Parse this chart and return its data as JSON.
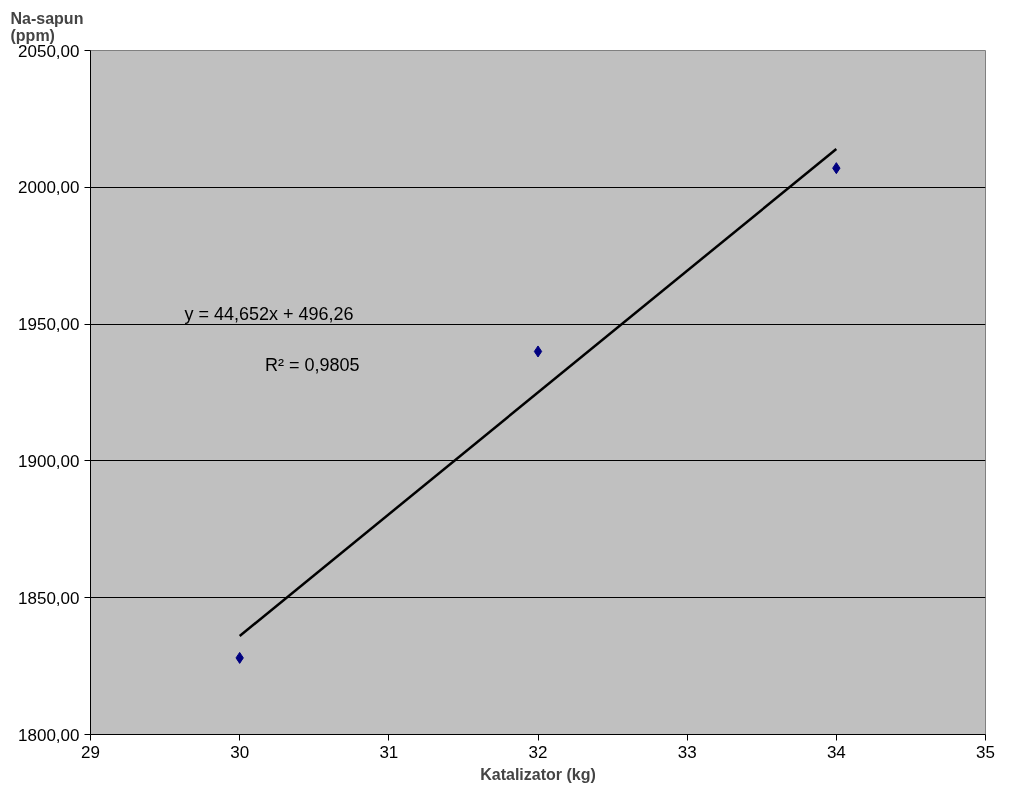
{
  "chart_data": {
    "type": "scatter",
    "xlabel": "Katalizator (kg)",
    "ylabel": "Na-sapun\n(ppm)",
    "series": [
      {
        "color": "#000080",
        "x": [
          30,
          32,
          34
        ],
        "values": [
          1828,
          1940,
          2007
        ],
        "marker": "diamond"
      },
      {
        "type": "line",
        "color": "#000000",
        "x": [
          30,
          34
        ],
        "values": [
          1836,
          2014
        ],
        "marker": "none"
      }
    ],
    "annotations": [
      "y = 44,652x + 496,26",
      "R² = 0,9805"
    ],
    "xlim": [
      29,
      35
    ],
    "xticks": [
      29,
      30,
      31,
      32,
      33,
      34,
      35
    ],
    "ylim": [
      1800,
      2050
    ],
    "yticks": [
      {
        "value": 1800,
        "label": "1800,00"
      },
      {
        "value": 1850,
        "label": "1850,00"
      },
      {
        "value": 1900,
        "label": "1900,00"
      },
      {
        "value": 1950,
        "label": "1950,00"
      },
      {
        "value": 2000,
        "label": "2000,00"
      },
      {
        "value": 2050,
        "label": "2050,00"
      }
    ],
    "grid": "y"
  }
}
